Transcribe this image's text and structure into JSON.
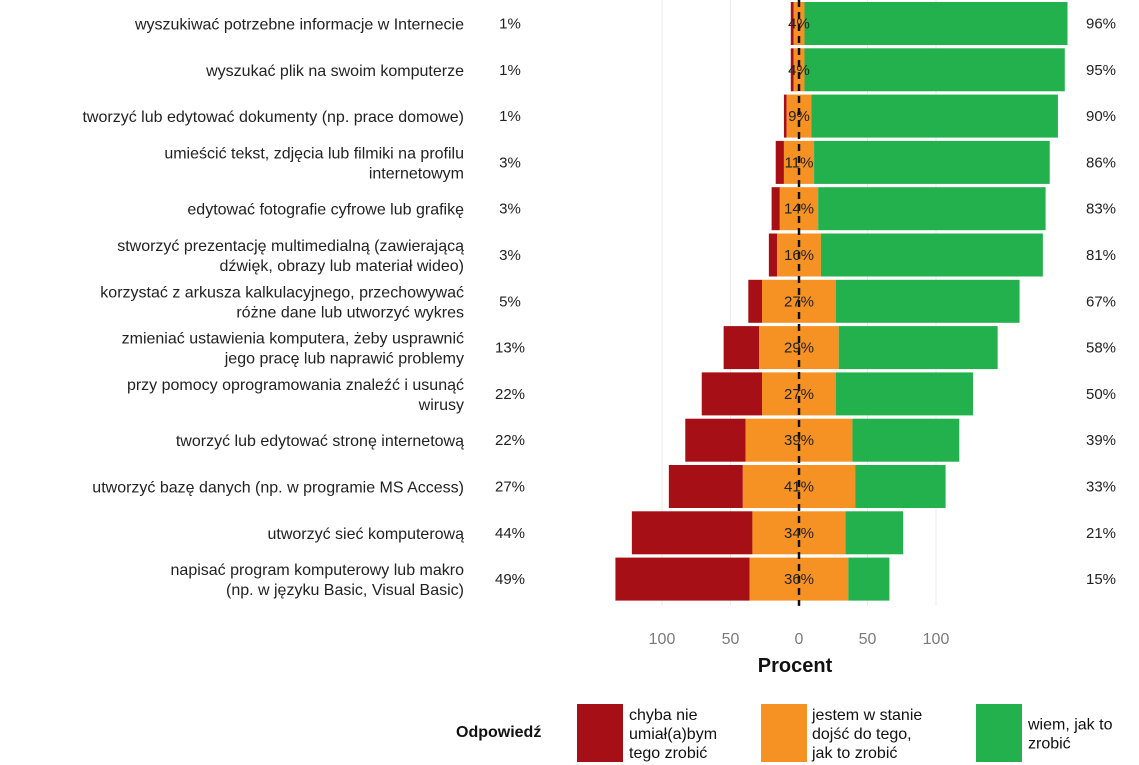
{
  "chart_data": {
    "type": "bar",
    "orientation": "horizontal",
    "stacking": "diverging",
    "categories": [
      [
        "wyszukiwać potrzebne informacje w Internecie"
      ],
      [
        "wyszukać plik na swoim komputerze"
      ],
      [
        "tworzyć lub edytować dokumenty (np. prace domowe)"
      ],
      [
        "umieścić tekst, zdjęcia lub filmiki na profilu",
        "internetowym"
      ],
      [
        "edytować fotografie cyfrowe lub grafikę"
      ],
      [
        "stworzyć prezentację multimedialną (zawierającą",
        "dźwięk, obrazy lub materiał wideo)"
      ],
      [
        "korzystać z arkusza kalkulacyjnego, przechowywać",
        "różne dane lub utworzyć wykres"
      ],
      [
        "zmieniać ustawienia komputera, żeby usprawnić",
        "jego pracę lub naprawić problemy"
      ],
      [
        "przy pomocy oprogramowania znaleźć i usunąć",
        "wirusy"
      ],
      [
        "tworzyć lub edytować stronę internetową"
      ],
      [
        "utworzyć bazę danych (np. w programie MS Access)"
      ],
      [
        "utworzyć sieć komputerową"
      ],
      [
        "napisać program komputerowy lub makro",
        "(np. w języku Basic, Visual Basic)"
      ]
    ],
    "series": [
      {
        "name": "chyba nie umiał(a)bym tego zrobić",
        "legend_lines": [
          "chyba nie",
          "umiał(a)bym",
          "tego zrobić"
        ],
        "color": "#a50f15",
        "values": [
          1,
          1,
          1,
          3,
          3,
          3,
          5,
          13,
          22,
          22,
          27,
          44,
          49
        ],
        "labels": [
          "1%",
          "1%",
          "1%",
          "3%",
          "3%",
          "3%",
          "5%",
          "13%",
          "22%",
          "22%",
          "27%",
          "44%",
          "49%"
        ]
      },
      {
        "name": "jestem w stanie dojść do tego, jak to zrobić",
        "legend_lines": [
          "jestem w stanie",
          "dojść do tego,",
          "jak to zrobić"
        ],
        "color": "#f59223",
        "values": [
          4,
          4,
          9,
          11,
          14,
          16,
          27,
          29,
          27,
          39,
          41,
          34,
          36
        ],
        "labels": [
          "4%",
          "4%",
          "9%",
          "11%",
          "14%",
          "16%",
          "27%",
          "29%",
          "27%",
          "39%",
          "41%",
          "34%",
          "36%"
        ]
      },
      {
        "name": "wiem, jak to zrobić",
        "legend_lines": [
          "wiem, jak to",
          "zrobić"
        ],
        "color": "#22b14c",
        "values": [
          96,
          95,
          90,
          86,
          83,
          81,
          67,
          58,
          50,
          39,
          33,
          21,
          15
        ],
        "labels": [
          "96%",
          "95%",
          "90%",
          "86%",
          "83%",
          "81%",
          "67%",
          "58%",
          "50%",
          "39%",
          "33%",
          "21%",
          "15%"
        ]
      }
    ],
    "xlim": [
      -100,
      100
    ],
    "x_ticks": [
      -100,
      -50,
      0,
      50,
      100
    ],
    "x_tick_labels": [
      "100",
      "50",
      "0",
      "50",
      "100"
    ],
    "xlabel": "Procent",
    "ylabel": "",
    "legend_title": "Odpowiedź",
    "legend_position": "bottom",
    "center_line": "dashed",
    "grid": true
  }
}
